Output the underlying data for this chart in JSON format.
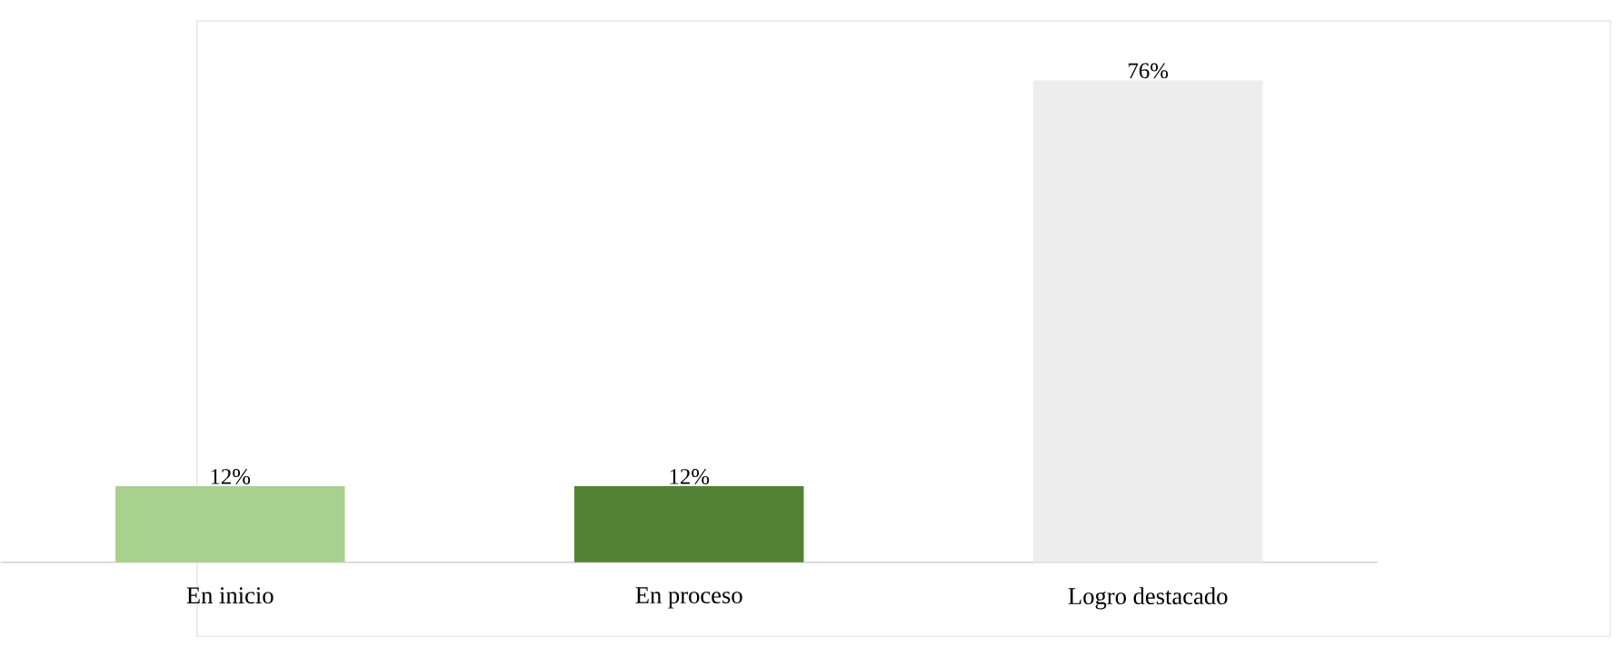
{
  "chart_data": {
    "type": "bar",
    "categories": [
      "En inicio",
      "En proceso",
      "Logro destacado"
    ],
    "values": [
      12,
      12,
      76
    ],
    "colors": [
      "#a9d18e",
      "#548235",
      "#ededed"
    ],
    "value_labels": [
      "12%",
      "12%",
      "76%"
    ]
  }
}
